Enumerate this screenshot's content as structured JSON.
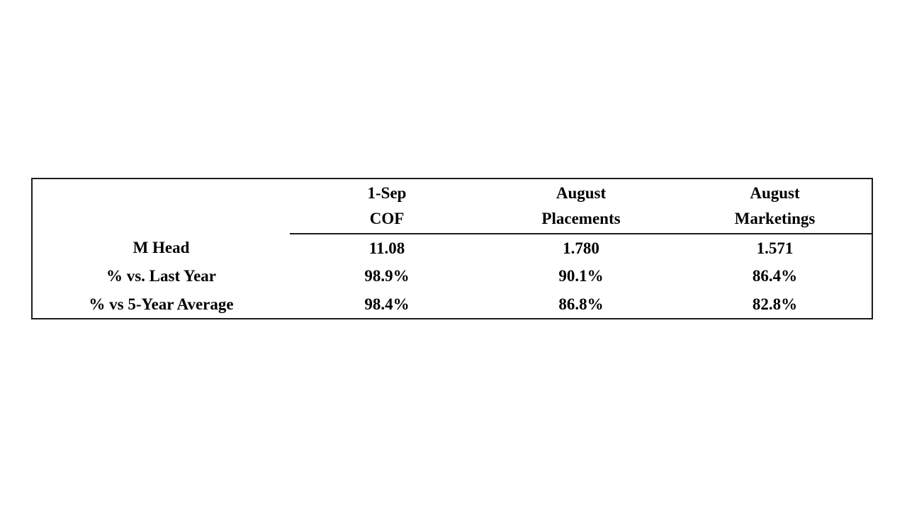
{
  "table": {
    "border_color": "#1c1c1c",
    "text_color": "#000000",
    "columns": [
      {
        "line1": "1-Sep",
        "line2": "COF"
      },
      {
        "line1": "August",
        "line2": "Placements"
      },
      {
        "line1": "August",
        "line2": "Marketings"
      }
    ],
    "rows": [
      {
        "label": "M Head",
        "values": [
          "11.08",
          "1.780",
          "1.571"
        ]
      },
      {
        "label": "% vs. Last Year",
        "values": [
          "98.9%",
          "90.1%",
          "86.4%"
        ]
      },
      {
        "label": "% vs 5-Year Average",
        "values": [
          "98.4%",
          "86.8%",
          "82.8%"
        ]
      }
    ]
  }
}
